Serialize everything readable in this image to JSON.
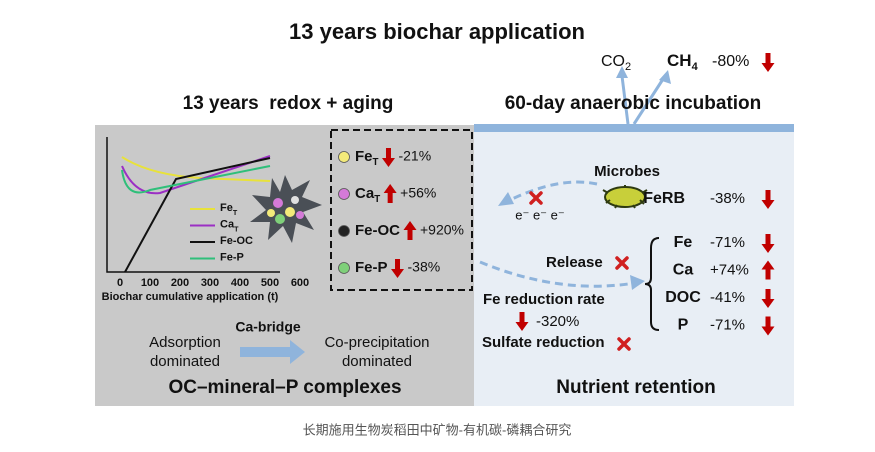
{
  "title": "13 years biochar application",
  "gases": {
    "co2": "CO",
    "co2_sub": "2",
    "ch4": "CH",
    "ch4_sub": "4",
    "ch4_change": "-80%"
  },
  "left": {
    "heading": "13 years  redox + aging",
    "chart": {
      "xticks": [
        "0",
        "100",
        "200",
        "300",
        "400",
        "500",
        "600"
      ],
      "xlabel": "Biochar cumulative application (t)",
      "legend": [
        {
          "label": "Fe",
          "sub": "T",
          "color": "#e8e23a"
        },
        {
          "label": "Ca",
          "sub": "T",
          "color": "#9b2fc4"
        },
        {
          "label": "Fe-OC",
          "color": "#111111"
        },
        {
          "label": "Fe-P",
          "color": "#2fbf7a"
        }
      ]
    },
    "box": [
      {
        "label": "Fe",
        "sub": "T",
        "change": "-21%",
        "color": "#f3ea7a"
      },
      {
        "label": "Ca",
        "sub": "T",
        "change": "+56%",
        "color": "#d47ad8"
      },
      {
        "label": "Fe-OC",
        "change": "+920%",
        "color": "#222222"
      },
      {
        "label": "Fe-P",
        "change": "-38%",
        "color": "#7fd07a"
      }
    ],
    "adsorption": [
      "Adsorption",
      "dominated"
    ],
    "bridge": "Ca-bridge",
    "coprecipitation": [
      "Co-precipitation",
      "dominated"
    ],
    "footer": "OC–mineral–P complexes"
  },
  "right": {
    "heading": "60-day anaerobic incubation",
    "microbes": "Microbes",
    "electrons": "e⁻ e⁻ e⁻",
    "ferb": {
      "label": "FeRB",
      "change": "-38%"
    },
    "release": "Release",
    "nutrients": [
      {
        "label": "Fe",
        "change": "-71%"
      },
      {
        "label": "Ca",
        "change": "+74%"
      },
      {
        "label": "DOC",
        "change": "-41%"
      },
      {
        "label": "P",
        "change": "-71%"
      }
    ],
    "fe_rate": "Fe reduction rate",
    "fe_rate_change": "-320%",
    "sulfate": "Sulfate reduction",
    "footer": "Nutrient retention"
  },
  "caption": "长期施用生物炭稻田中矿物-有机碳-磷耦合研究"
}
